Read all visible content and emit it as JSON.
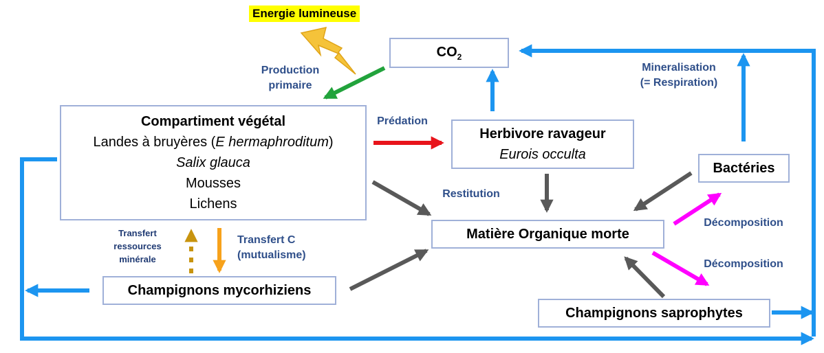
{
  "energy_label": "Energie lumineuse",
  "boxes": {
    "co2": {
      "label": "CO",
      "subscript": "2"
    },
    "vegetal": {
      "title": "Compartiment végétal",
      "line1_prefix": "Landes à bruyères (",
      "line1_italic": "E hermaphroditum",
      "line1_suffix": ")",
      "line2": "Salix glauca",
      "line3": "Mousses",
      "line4": "Lichens"
    },
    "herbivore": {
      "title": "Herbivore ravageur",
      "species": "Eurois occulta"
    },
    "matiere": {
      "title": "Matière Organique morte"
    },
    "bacteries": {
      "title": "Bactéries"
    },
    "mycorhiziens": {
      "title": "Champignons mycorhiziens"
    },
    "saprophytes": {
      "title": "Champignons saprophytes"
    }
  },
  "labels": {
    "production_primaire_1": "Production",
    "production_primaire_2": "primaire",
    "predation": "Prédation",
    "restitution": "Restitution",
    "mineralisation_1": "Mineralisation",
    "mineralisation_2": "(= Respiration)",
    "decomposition_upper": "Décomposition",
    "decomposition_lower": "Décomposition",
    "transfert_c_1": "Transfert C",
    "transfert_c_2": "(mutualisme)",
    "transfert_ressources_1": "Transfert",
    "transfert_ressources_2": "ressources",
    "transfert_ressources_3": "minérale"
  },
  "colors": {
    "blue_flow": "#1c95f0",
    "grey_flow": "#595959",
    "green_flow": "#22a33c",
    "red_flow": "#e8141b",
    "magenta_flow": "#ff00ff",
    "orange_flow": "#f7a21b",
    "dotted_flow": "#c8940f",
    "lightning": "#f5c33a",
    "box_border": "#9fb0d8",
    "label_text": "#2f4f8a",
    "energy_highlight": "#ffff00"
  },
  "icons": {
    "energy": "lightning-bolt-icon"
  }
}
